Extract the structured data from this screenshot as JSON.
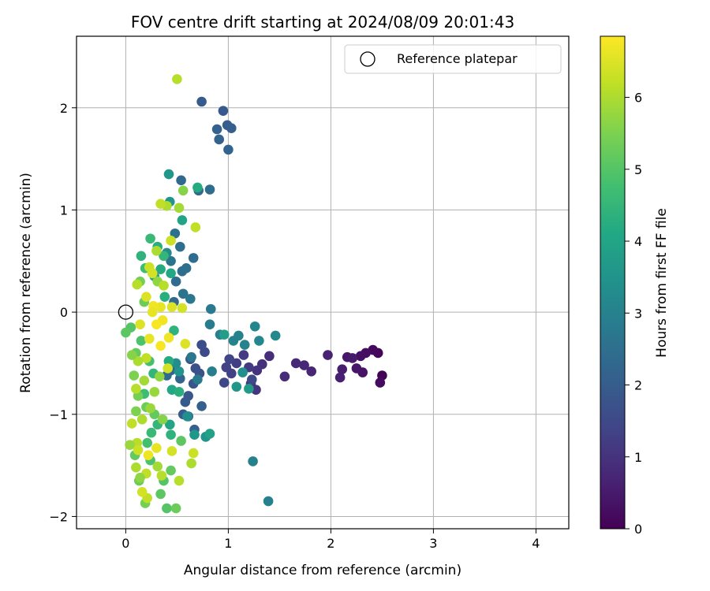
{
  "chart_data": {
    "type": "scatter",
    "title": "FOV centre drift starting at 2024/08/09 20:01:43",
    "xlabel": "Angular distance from reference (arcmin)",
    "ylabel": "Rotation from reference (arcmin)",
    "xlim": [
      -0.48,
      4.32
    ],
    "ylim": [
      -2.12,
      2.7
    ],
    "xticks": [
      0,
      1,
      2,
      3,
      4
    ],
    "yticks": [
      -2,
      -1,
      0,
      1,
      2
    ],
    "grid": true,
    "legend": {
      "position": "top-right",
      "entries": [
        "Reference platepar"
      ]
    },
    "reference_point": {
      "x": 0,
      "y": 0,
      "label": "Reference platepar"
    },
    "colorbar": {
      "label": "Hours from first FF file",
      "min": 0,
      "max": 6.85,
      "ticks": [
        0,
        1,
        2,
        3,
        4,
        5,
        6
      ],
      "colormap": "viridis"
    },
    "points": [
      {
        "x": 2.5,
        "y": -0.62,
        "h": 0.05
      },
      {
        "x": 2.46,
        "y": -0.4,
        "h": 0.1
      },
      {
        "x": 2.41,
        "y": -0.37,
        "h": 0.15
      },
      {
        "x": 2.48,
        "y": -0.69,
        "h": 0.2
      },
      {
        "x": 2.34,
        "y": -0.4,
        "h": 0.25
      },
      {
        "x": 2.29,
        "y": -0.43,
        "h": 0.3
      },
      {
        "x": 2.31,
        "y": -0.59,
        "h": 0.35
      },
      {
        "x": 2.25,
        "y": -0.55,
        "h": 0.4
      },
      {
        "x": 2.16,
        "y": -0.44,
        "h": 0.45
      },
      {
        "x": 2.21,
        "y": -0.45,
        "h": 0.5
      },
      {
        "x": 2.11,
        "y": -0.56,
        "h": 0.55
      },
      {
        "x": 2.09,
        "y": -0.64,
        "h": 0.6
      },
      {
        "x": 1.97,
        "y": -0.42,
        "h": 0.65
      },
      {
        "x": 1.81,
        "y": -0.58,
        "h": 0.7
      },
      {
        "x": 1.74,
        "y": -0.52,
        "h": 0.75
      },
      {
        "x": 1.66,
        "y": -0.5,
        "h": 0.8
      },
      {
        "x": 1.55,
        "y": -0.63,
        "h": 0.85
      },
      {
        "x": 1.4,
        "y": -0.43,
        "h": 0.9
      },
      {
        "x": 1.33,
        "y": -0.51,
        "h": 0.95
      },
      {
        "x": 1.28,
        "y": -0.57,
        "h": 1.0
      },
      {
        "x": 1.27,
        "y": -0.76,
        "h": 1.05
      },
      {
        "x": 1.22,
        "y": -0.7,
        "h": 1.1
      },
      {
        "x": 1.2,
        "y": -0.54,
        "h": 1.15
      },
      {
        "x": 1.15,
        "y": -0.42,
        "h": 1.2
      },
      {
        "x": 1.08,
        "y": -0.5,
        "h": 1.25
      },
      {
        "x": 1.03,
        "y": -0.6,
        "h": 1.3
      },
      {
        "x": 0.98,
        "y": -0.54,
        "h": 1.35
      },
      {
        "x": 1.01,
        "y": -0.46,
        "h": 1.4
      },
      {
        "x": 0.96,
        "y": -0.69,
        "h": 1.45
      },
      {
        "x": 1.23,
        "y": -0.66,
        "h": 1.5
      },
      {
        "x": 0.77,
        "y": -0.39,
        "h": 1.55
      },
      {
        "x": 0.74,
        "y": -0.32,
        "h": 1.6
      },
      {
        "x": 0.68,
        "y": -0.55,
        "h": 1.65
      },
      {
        "x": 0.72,
        "y": -0.6,
        "h": 1.7
      },
      {
        "x": 0.63,
        "y": -0.46,
        "h": 1.75
      },
      {
        "x": 0.66,
        "y": -0.7,
        "h": 1.8
      },
      {
        "x": 0.61,
        "y": -0.82,
        "h": 1.85
      },
      {
        "x": 0.58,
        "y": -0.88,
        "h": 1.9
      },
      {
        "x": 0.56,
        "y": -1.0,
        "h": 1.95
      },
      {
        "x": 0.61,
        "y": -1.02,
        "h": 2.0
      },
      {
        "x": 0.74,
        "y": -0.92,
        "h": 2.05
      },
      {
        "x": 0.67,
        "y": -1.15,
        "h": 2.1
      },
      {
        "x": 0.78,
        "y": -1.22,
        "h": 2.15
      },
      {
        "x": 0.53,
        "y": -0.65,
        "h": 2.2
      },
      {
        "x": 0.44,
        "y": -0.57,
        "h": 2.25
      },
      {
        "x": 0.4,
        "y": -0.62,
        "h": 2.3
      },
      {
        "x": 0.47,
        "y": 0.1,
        "h": 2.35
      },
      {
        "x": 0.49,
        "y": 0.3,
        "h": 2.4
      },
      {
        "x": 0.55,
        "y": 0.4,
        "h": 2.45
      },
      {
        "x": 0.53,
        "y": 0.64,
        "h": 2.5
      },
      {
        "x": 0.48,
        "y": 0.77,
        "h": 2.55
      },
      {
        "x": 0.44,
        "y": 0.5,
        "h": 2.6
      },
      {
        "x": 0.74,
        "y": 2.06,
        "h": 1.95
      },
      {
        "x": 0.95,
        "y": 1.97,
        "h": 1.9
      },
      {
        "x": 0.99,
        "y": 1.83,
        "h": 2.0
      },
      {
        "x": 1.03,
        "y": 1.8,
        "h": 2.05
      },
      {
        "x": 0.89,
        "y": 1.79,
        "h": 2.1
      },
      {
        "x": 0.91,
        "y": 1.69,
        "h": 2.15
      },
      {
        "x": 1.0,
        "y": 1.59,
        "h": 2.2
      },
      {
        "x": 0.54,
        "y": 1.29,
        "h": 2.3
      },
      {
        "x": 0.71,
        "y": 1.19,
        "h": 2.35
      },
      {
        "x": 0.82,
        "y": 1.2,
        "h": 2.4
      },
      {
        "x": 0.66,
        "y": 0.53,
        "h": 2.45
      },
      {
        "x": 0.59,
        "y": 0.43,
        "h": 2.5
      },
      {
        "x": 0.56,
        "y": 0.18,
        "h": 2.6
      },
      {
        "x": 0.63,
        "y": 0.13,
        "h": 2.7
      },
      {
        "x": 0.83,
        "y": 0.03,
        "h": 2.8
      },
      {
        "x": 0.82,
        "y": -0.12,
        "h": 2.85
      },
      {
        "x": 0.92,
        "y": -0.22,
        "h": 2.9
      },
      {
        "x": 1.05,
        "y": -0.28,
        "h": 2.95
      },
      {
        "x": 1.1,
        "y": -0.23,
        "h": 3.0
      },
      {
        "x": 1.16,
        "y": -0.32,
        "h": 3.05
      },
      {
        "x": 1.26,
        "y": -0.14,
        "h": 3.1
      },
      {
        "x": 1.3,
        "y": -0.28,
        "h": 3.15
      },
      {
        "x": 1.46,
        "y": -0.23,
        "h": 3.2
      },
      {
        "x": 1.24,
        "y": -1.46,
        "h": 3.0
      },
      {
        "x": 1.39,
        "y": -1.85,
        "h": 2.95
      },
      {
        "x": 0.84,
        "y": -0.58,
        "h": 2.9
      },
      {
        "x": 0.7,
        "y": -0.66,
        "h": 2.8
      },
      {
        "x": 0.64,
        "y": -0.44,
        "h": 2.7
      },
      {
        "x": 1.14,
        "y": -0.59,
        "h": 3.4
      },
      {
        "x": 1.08,
        "y": -0.73,
        "h": 3.6
      },
      {
        "x": 1.2,
        "y": -0.75,
        "h": 3.7
      },
      {
        "x": 0.96,
        "y": -0.22,
        "h": 3.8
      },
      {
        "x": 0.78,
        "y": -1.22,
        "h": 3.5
      },
      {
        "x": 0.82,
        "y": -1.19,
        "h": 3.9
      },
      {
        "x": 0.67,
        "y": -1.2,
        "h": 3.6
      },
      {
        "x": 0.6,
        "y": -1.02,
        "h": 3.4
      },
      {
        "x": 0.52,
        "y": -0.58,
        "h": 3.5
      },
      {
        "x": 0.49,
        "y": -0.5,
        "h": 3.3
      },
      {
        "x": 0.42,
        "y": -0.48,
        "h": 3.4
      },
      {
        "x": 0.4,
        "y": 0.58,
        "h": 3.3
      },
      {
        "x": 0.42,
        "y": 1.35,
        "h": 3.6
      },
      {
        "x": 0.43,
        "y": 1.08,
        "h": 3.5
      },
      {
        "x": 0.55,
        "y": 0.9,
        "h": 4.0
      },
      {
        "x": 0.7,
        "y": 1.22,
        "h": 4.2
      },
      {
        "x": 0.31,
        "y": 0.64,
        "h": 4.3
      },
      {
        "x": 0.37,
        "y": 0.55,
        "h": 4.5
      },
      {
        "x": 0.24,
        "y": 0.72,
        "h": 4.6
      },
      {
        "x": 0.19,
        "y": 0.43,
        "h": 4.7
      },
      {
        "x": 0.15,
        "y": 0.55,
        "h": 4.4
      },
      {
        "x": 0.34,
        "y": 0.42,
        "h": 4.2
      },
      {
        "x": 0.44,
        "y": 0.38,
        "h": 4.1
      },
      {
        "x": 0.28,
        "y": 0.35,
        "h": 4.0
      },
      {
        "x": 0.38,
        "y": 0.15,
        "h": 4.3
      },
      {
        "x": 0.47,
        "y": -0.18,
        "h": 4.4
      },
      {
        "x": 0.42,
        "y": -0.48,
        "h": 4.2
      },
      {
        "x": 0.45,
        "y": -0.76,
        "h": 4.1
      },
      {
        "x": 0.52,
        "y": -0.78,
        "h": 4.3
      },
      {
        "x": 0.43,
        "y": -1.1,
        "h": 4.0
      },
      {
        "x": 0.44,
        "y": -1.2,
        "h": 4.4
      },
      {
        "x": 0.31,
        "y": -1.1,
        "h": 4.5
      },
      {
        "x": 0.25,
        "y": -1.18,
        "h": 4.6
      },
      {
        "x": 0.18,
        "y": -0.8,
        "h": 4.7
      },
      {
        "x": 0.23,
        "y": -0.48,
        "h": 4.8
      },
      {
        "x": 0.27,
        "y": -0.6,
        "h": 4.5
      },
      {
        "x": 0.15,
        "y": -0.28,
        "h": 4.9
      },
      {
        "x": 0.05,
        "y": -0.15,
        "h": 5.0
      },
      {
        "x": 0.0,
        "y": -0.2,
        "h": 5.1
      },
      {
        "x": 0.1,
        "y": -0.4,
        "h": 5.2
      },
      {
        "x": 0.21,
        "y": -1.28,
        "h": 4.8
      },
      {
        "x": 0.24,
        "y": -1.45,
        "h": 4.9
      },
      {
        "x": 0.37,
        "y": -1.65,
        "h": 5.0
      },
      {
        "x": 0.34,
        "y": -1.78,
        "h": 5.1
      },
      {
        "x": 0.44,
        "y": -1.55,
        "h": 5.2
      },
      {
        "x": 0.4,
        "y": -1.92,
        "h": 5.0
      },
      {
        "x": 0.49,
        "y": -1.92,
        "h": 5.3
      },
      {
        "x": 0.19,
        "y": -1.87,
        "h": 5.4
      },
      {
        "x": 0.13,
        "y": -1.65,
        "h": 5.3
      },
      {
        "x": 0.09,
        "y": -1.4,
        "h": 5.2
      },
      {
        "x": 0.54,
        "y": -1.26,
        "h": 5.1
      },
      {
        "x": 0.28,
        "y": -1.0,
        "h": 5.2
      },
      {
        "x": 0.2,
        "y": -0.93,
        "h": 5.3
      },
      {
        "x": 0.12,
        "y": -0.82,
        "h": 5.4
      },
      {
        "x": 0.08,
        "y": -0.62,
        "h": 5.5
      },
      {
        "x": 0.14,
        "y": 0.3,
        "h": 5.4
      },
      {
        "x": 0.18,
        "y": 0.1,
        "h": 5.3
      },
      {
        "x": 0.56,
        "y": 1.19,
        "h": 5.6
      },
      {
        "x": 0.52,
        "y": 1.02,
        "h": 5.9
      },
      {
        "x": 0.4,
        "y": 1.04,
        "h": 6.0
      },
      {
        "x": 0.34,
        "y": 1.06,
        "h": 6.2
      },
      {
        "x": 0.31,
        "y": 0.3,
        "h": 5.7
      },
      {
        "x": 0.37,
        "y": 0.26,
        "h": 6.1
      },
      {
        "x": 0.44,
        "y": 0.7,
        "h": 6.3
      },
      {
        "x": 0.3,
        "y": 0.6,
        "h": 6.0
      },
      {
        "x": 0.11,
        "y": 0.27,
        "h": 6.1
      },
      {
        "x": 0.23,
        "y": 0.44,
        "h": 6.3
      },
      {
        "x": 0.26,
        "y": 0.38,
        "h": 6.4
      },
      {
        "x": 0.5,
        "y": 2.28,
        "h": 6.1
      },
      {
        "x": 0.68,
        "y": 0.83,
        "h": 6.2
      },
      {
        "x": 0.55,
        "y": 0.04,
        "h": 6.4
      },
      {
        "x": 0.45,
        "y": 0.05,
        "h": 6.5
      },
      {
        "x": 0.34,
        "y": 0.05,
        "h": 6.6
      },
      {
        "x": 0.27,
        "y": 0.06,
        "h": 6.7
      },
      {
        "x": 0.2,
        "y": 0.15,
        "h": 6.5
      },
      {
        "x": 0.26,
        "y": 0.0,
        "h": 6.6
      },
      {
        "x": 0.36,
        "y": -0.08,
        "h": 6.7
      },
      {
        "x": 0.3,
        "y": -0.12,
        "h": 6.8
      },
      {
        "x": 0.42,
        "y": -0.25,
        "h": 6.7
      },
      {
        "x": 0.34,
        "y": -0.33,
        "h": 6.8
      },
      {
        "x": 0.23,
        "y": -0.26,
        "h": 6.6
      },
      {
        "x": 0.14,
        "y": -0.12,
        "h": 6.5
      },
      {
        "x": 0.58,
        "y": -0.31,
        "h": 6.5
      },
      {
        "x": 0.41,
        "y": -0.55,
        "h": 6.4
      },
      {
        "x": 0.2,
        "y": -0.45,
        "h": 6.2
      },
      {
        "x": 0.12,
        "y": -0.48,
        "h": 6.0
      },
      {
        "x": 0.1,
        "y": -0.75,
        "h": 6.1
      },
      {
        "x": 0.18,
        "y": -0.67,
        "h": 5.9
      },
      {
        "x": 0.28,
        "y": -0.78,
        "h": 5.8
      },
      {
        "x": 0.16,
        "y": -1.05,
        "h": 6.0
      },
      {
        "x": 0.06,
        "y": -1.09,
        "h": 6.2
      },
      {
        "x": 0.11,
        "y": -1.28,
        "h": 6.1
      },
      {
        "x": 0.12,
        "y": -1.35,
        "h": 6.3
      },
      {
        "x": 0.1,
        "y": -1.52,
        "h": 6.0
      },
      {
        "x": 0.2,
        "y": -1.58,
        "h": 6.2
      },
      {
        "x": 0.31,
        "y": -1.51,
        "h": 5.9
      },
      {
        "x": 0.35,
        "y": -1.6,
        "h": 6.1
      },
      {
        "x": 0.45,
        "y": -1.36,
        "h": 6.4
      },
      {
        "x": 0.66,
        "y": -1.38,
        "h": 6.3
      },
      {
        "x": 0.64,
        "y": -1.48,
        "h": 6.0
      },
      {
        "x": 0.21,
        "y": -1.82,
        "h": 6.2
      },
      {
        "x": 0.16,
        "y": -1.76,
        "h": 6.4
      },
      {
        "x": 0.3,
        "y": -1.33,
        "h": 6.6
      },
      {
        "x": 0.22,
        "y": -1.4,
        "h": 6.7
      },
      {
        "x": 0.04,
        "y": -1.3,
        "h": 5.8
      },
      {
        "x": 0.14,
        "y": -1.62,
        "h": 5.7
      },
      {
        "x": 0.36,
        "y": -1.05,
        "h": 5.6
      },
      {
        "x": 0.52,
        "y": -1.65,
        "h": 6.1
      },
      {
        "x": 0.24,
        "y": -0.94,
        "h": 5.8
      },
      {
        "x": 0.1,
        "y": -0.97,
        "h": 5.5
      },
      {
        "x": 0.33,
        "y": -0.63,
        "h": 5.7
      },
      {
        "x": 0.06,
        "y": -0.42,
        "h": 5.6
      }
    ]
  }
}
